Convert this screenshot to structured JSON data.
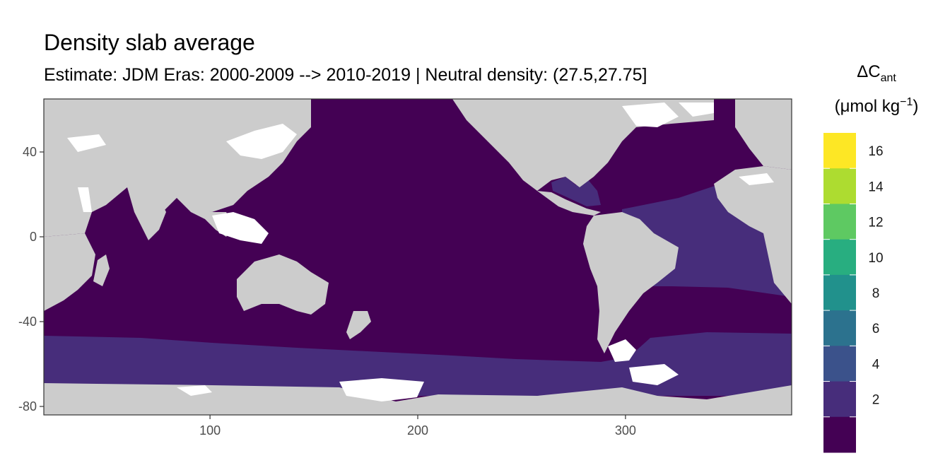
{
  "title": "Density slab average",
  "subtitle": "Estimate: JDM Eras: 2000-2009 --> 2010-2019 | Neutral density: (27.5,27.75]",
  "legend": {
    "title_symbol": "ΔC",
    "title_subscript": "ant",
    "unit_prefix": "(μmol kg",
    "unit_exponent": "−1",
    "unit_suffix": ")",
    "labels": [
      "16",
      "14",
      "12",
      "10",
      "8",
      "6",
      "4",
      "2"
    ],
    "colors_top_to_bottom": [
      "#fde725",
      "#addc30",
      "#5ec962",
      "#28ae80",
      "#21918c",
      "#2c728e",
      "#3b528b",
      "#472d7b",
      "#440154"
    ]
  },
  "colors": {
    "land": "#cccccc",
    "missing": "#ffffff",
    "class_0_2": "#440154",
    "class_2_4": "#472d7b"
  },
  "chart_data": {
    "type": "heatmap",
    "x_ticks": [
      "100",
      "200",
      "300"
    ],
    "y_ticks": [
      "40",
      "0",
      "-40",
      "-80"
    ],
    "x_tick_values": [
      100,
      200,
      300
    ],
    "y_tick_values": [
      40,
      0,
      -40,
      -80
    ],
    "xlim": [
      20,
      380
    ],
    "ylim": [
      -84,
      65
    ],
    "color_scale_breaks": [
      2,
      4,
      6,
      8,
      10,
      12,
      14,
      16
    ],
    "dominant_classes": [
      {
        "region": "Pacific, Indian and subtropical North Atlantic",
        "range": "0-2"
      },
      {
        "region": "Southern Ocean band and South Atlantic",
        "range": "2-4"
      }
    ]
  }
}
